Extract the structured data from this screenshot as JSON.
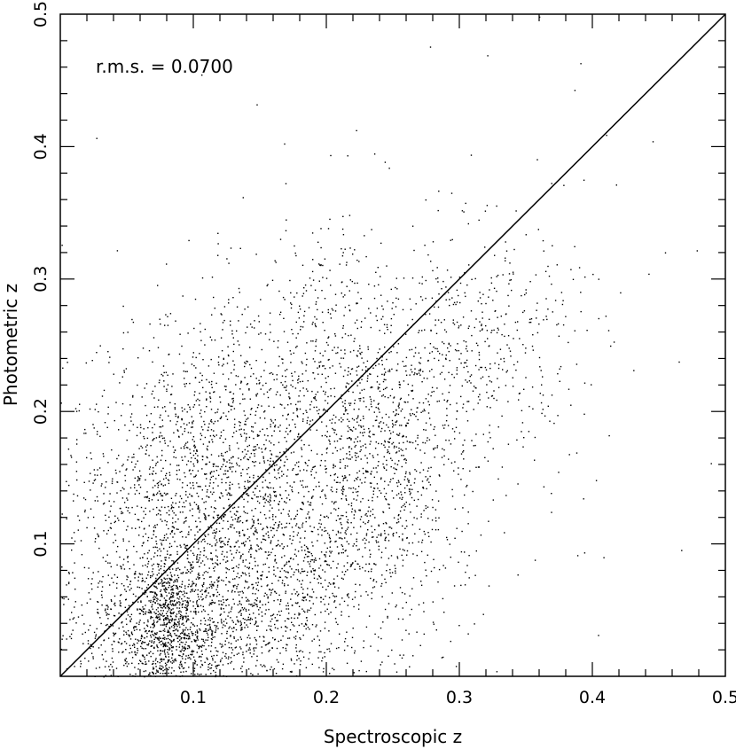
{
  "chart_data": {
    "type": "scatter",
    "title": "",
    "xlabel": "Spectroscopic z",
    "ylabel": "Photometric z",
    "xlim": [
      0,
      0.5
    ],
    "ylim": [
      0,
      0.5
    ],
    "x_ticks": [
      {
        "value": 0.1,
        "label": "0.1"
      },
      {
        "value": 0.2,
        "label": "0.2"
      },
      {
        "value": 0.3,
        "label": "0.3"
      },
      {
        "value": 0.4,
        "label": "0.4"
      },
      {
        "value": 0.5,
        "label": "0.5"
      }
    ],
    "y_ticks": [
      {
        "value": 0.1,
        "label": "0.1"
      },
      {
        "value": 0.2,
        "label": "0.2"
      },
      {
        "value": 0.3,
        "label": "0.3"
      },
      {
        "value": 0.4,
        "label": "0.4"
      },
      {
        "value": 0.5,
        "label": "0.5"
      }
    ],
    "annotation": "r.m.s. = 0.0700",
    "reference_line": {
      "from": [
        0,
        0
      ],
      "to": [
        0.5,
        0.5
      ]
    },
    "grid": false,
    "legend": "none",
    "marker_color": "#000000",
    "clusters": [
      {
        "x_mean": 0.08,
        "x_sd": 0.012,
        "y_mean": 0.04,
        "y_sd": 0.03,
        "count": 550
      },
      {
        "x_mean": 0.09,
        "x_sd": 0.05,
        "y_mean": 0.03,
        "y_sd": 0.025,
        "count": 1100
      },
      {
        "x_mean": 0.1,
        "x_sd": 0.05,
        "y_mean": 0.13,
        "y_sd": 0.055,
        "count": 1500
      },
      {
        "x_mean": 0.16,
        "x_sd": 0.05,
        "y_mean": 0.2,
        "y_sd": 0.05,
        "count": 700
      },
      {
        "x_mean": 0.18,
        "x_sd": 0.06,
        "y_mean": 0.08,
        "y_sd": 0.04,
        "count": 900
      },
      {
        "x_mean": 0.24,
        "x_sd": 0.03,
        "y_mean": 0.17,
        "y_sd": 0.045,
        "count": 700
      },
      {
        "x_mean": 0.31,
        "x_sd": 0.04,
        "y_mean": 0.25,
        "y_sd": 0.045,
        "count": 500
      },
      {
        "x_mean": 0.2,
        "x_sd": 0.03,
        "y_mean": 0.27,
        "y_sd": 0.04,
        "count": 150
      },
      {
        "x_mean": 0.25,
        "x_sd": 0.12,
        "y_mean": 0.25,
        "y_sd": 0.12,
        "count": 120
      }
    ]
  }
}
